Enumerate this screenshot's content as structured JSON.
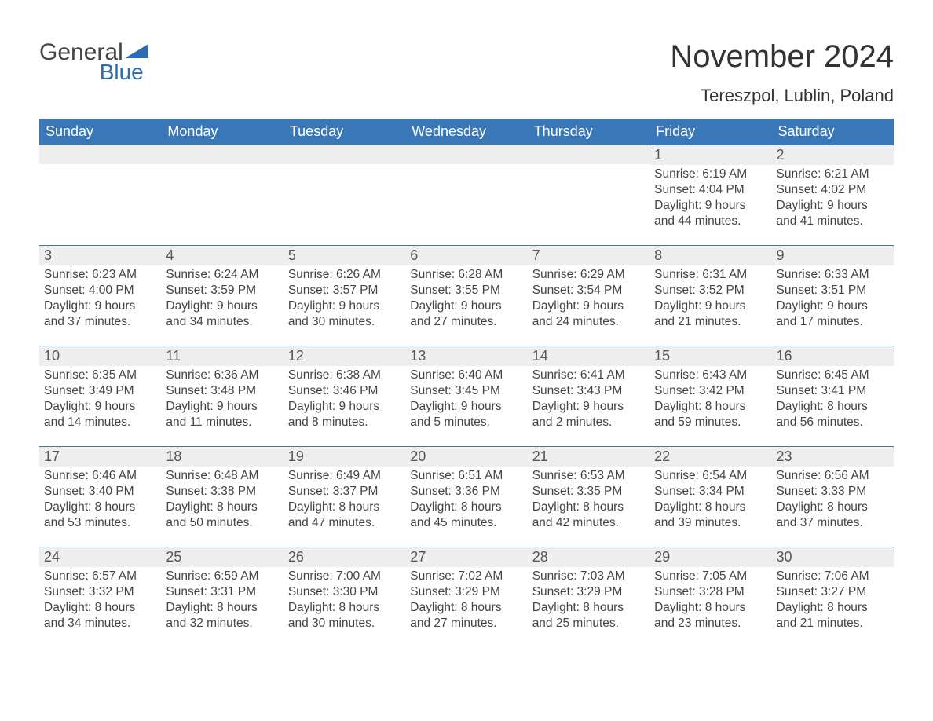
{
  "logo": {
    "text_general": "General",
    "text_blue": "Blue",
    "icon_color": "#2d6cb2",
    "general_color": "#444444",
    "blue_color": "#2d6cb2"
  },
  "title": "November 2024",
  "subtitle": "Tereszpol, Lublin, Poland",
  "colors": {
    "header_bg": "#3a77b8",
    "header_text": "#ffffff",
    "daynum_bg": "#eeeeee",
    "daynum_border": "#3a77b8",
    "body_text": "#444444",
    "bg": "#ffffff"
  },
  "day_headers": [
    "Sunday",
    "Monday",
    "Tuesday",
    "Wednesday",
    "Thursday",
    "Friday",
    "Saturday"
  ],
  "weeks": [
    [
      null,
      null,
      null,
      null,
      null,
      {
        "n": "1",
        "sunrise": "Sunrise: 6:19 AM",
        "sunset": "Sunset: 4:04 PM",
        "d1": "Daylight: 9 hours",
        "d2": "and 44 minutes."
      },
      {
        "n": "2",
        "sunrise": "Sunrise: 6:21 AM",
        "sunset": "Sunset: 4:02 PM",
        "d1": "Daylight: 9 hours",
        "d2": "and 41 minutes."
      }
    ],
    [
      {
        "n": "3",
        "sunrise": "Sunrise: 6:23 AM",
        "sunset": "Sunset: 4:00 PM",
        "d1": "Daylight: 9 hours",
        "d2": "and 37 minutes."
      },
      {
        "n": "4",
        "sunrise": "Sunrise: 6:24 AM",
        "sunset": "Sunset: 3:59 PM",
        "d1": "Daylight: 9 hours",
        "d2": "and 34 minutes."
      },
      {
        "n": "5",
        "sunrise": "Sunrise: 6:26 AM",
        "sunset": "Sunset: 3:57 PM",
        "d1": "Daylight: 9 hours",
        "d2": "and 30 minutes."
      },
      {
        "n": "6",
        "sunrise": "Sunrise: 6:28 AM",
        "sunset": "Sunset: 3:55 PM",
        "d1": "Daylight: 9 hours",
        "d2": "and 27 minutes."
      },
      {
        "n": "7",
        "sunrise": "Sunrise: 6:29 AM",
        "sunset": "Sunset: 3:54 PM",
        "d1": "Daylight: 9 hours",
        "d2": "and 24 minutes."
      },
      {
        "n": "8",
        "sunrise": "Sunrise: 6:31 AM",
        "sunset": "Sunset: 3:52 PM",
        "d1": "Daylight: 9 hours",
        "d2": "and 21 minutes."
      },
      {
        "n": "9",
        "sunrise": "Sunrise: 6:33 AM",
        "sunset": "Sunset: 3:51 PM",
        "d1": "Daylight: 9 hours",
        "d2": "and 17 minutes."
      }
    ],
    [
      {
        "n": "10",
        "sunrise": "Sunrise: 6:35 AM",
        "sunset": "Sunset: 3:49 PM",
        "d1": "Daylight: 9 hours",
        "d2": "and 14 minutes."
      },
      {
        "n": "11",
        "sunrise": "Sunrise: 6:36 AM",
        "sunset": "Sunset: 3:48 PM",
        "d1": "Daylight: 9 hours",
        "d2": "and 11 minutes."
      },
      {
        "n": "12",
        "sunrise": "Sunrise: 6:38 AM",
        "sunset": "Sunset: 3:46 PM",
        "d1": "Daylight: 9 hours",
        "d2": "and 8 minutes."
      },
      {
        "n": "13",
        "sunrise": "Sunrise: 6:40 AM",
        "sunset": "Sunset: 3:45 PM",
        "d1": "Daylight: 9 hours",
        "d2": "and 5 minutes."
      },
      {
        "n": "14",
        "sunrise": "Sunrise: 6:41 AM",
        "sunset": "Sunset: 3:43 PM",
        "d1": "Daylight: 9 hours",
        "d2": "and 2 minutes."
      },
      {
        "n": "15",
        "sunrise": "Sunrise: 6:43 AM",
        "sunset": "Sunset: 3:42 PM",
        "d1": "Daylight: 8 hours",
        "d2": "and 59 minutes."
      },
      {
        "n": "16",
        "sunrise": "Sunrise: 6:45 AM",
        "sunset": "Sunset: 3:41 PM",
        "d1": "Daylight: 8 hours",
        "d2": "and 56 minutes."
      }
    ],
    [
      {
        "n": "17",
        "sunrise": "Sunrise: 6:46 AM",
        "sunset": "Sunset: 3:40 PM",
        "d1": "Daylight: 8 hours",
        "d2": "and 53 minutes."
      },
      {
        "n": "18",
        "sunrise": "Sunrise: 6:48 AM",
        "sunset": "Sunset: 3:38 PM",
        "d1": "Daylight: 8 hours",
        "d2": "and 50 minutes."
      },
      {
        "n": "19",
        "sunrise": "Sunrise: 6:49 AM",
        "sunset": "Sunset: 3:37 PM",
        "d1": "Daylight: 8 hours",
        "d2": "and 47 minutes."
      },
      {
        "n": "20",
        "sunrise": "Sunrise: 6:51 AM",
        "sunset": "Sunset: 3:36 PM",
        "d1": "Daylight: 8 hours",
        "d2": "and 45 minutes."
      },
      {
        "n": "21",
        "sunrise": "Sunrise: 6:53 AM",
        "sunset": "Sunset: 3:35 PM",
        "d1": "Daylight: 8 hours",
        "d2": "and 42 minutes."
      },
      {
        "n": "22",
        "sunrise": "Sunrise: 6:54 AM",
        "sunset": "Sunset: 3:34 PM",
        "d1": "Daylight: 8 hours",
        "d2": "and 39 minutes."
      },
      {
        "n": "23",
        "sunrise": "Sunrise: 6:56 AM",
        "sunset": "Sunset: 3:33 PM",
        "d1": "Daylight: 8 hours",
        "d2": "and 37 minutes."
      }
    ],
    [
      {
        "n": "24",
        "sunrise": "Sunrise: 6:57 AM",
        "sunset": "Sunset: 3:32 PM",
        "d1": "Daylight: 8 hours",
        "d2": "and 34 minutes."
      },
      {
        "n": "25",
        "sunrise": "Sunrise: 6:59 AM",
        "sunset": "Sunset: 3:31 PM",
        "d1": "Daylight: 8 hours",
        "d2": "and 32 minutes."
      },
      {
        "n": "26",
        "sunrise": "Sunrise: 7:00 AM",
        "sunset": "Sunset: 3:30 PM",
        "d1": "Daylight: 8 hours",
        "d2": "and 30 minutes."
      },
      {
        "n": "27",
        "sunrise": "Sunrise: 7:02 AM",
        "sunset": "Sunset: 3:29 PM",
        "d1": "Daylight: 8 hours",
        "d2": "and 27 minutes."
      },
      {
        "n": "28",
        "sunrise": "Sunrise: 7:03 AM",
        "sunset": "Sunset: 3:29 PM",
        "d1": "Daylight: 8 hours",
        "d2": "and 25 minutes."
      },
      {
        "n": "29",
        "sunrise": "Sunrise: 7:05 AM",
        "sunset": "Sunset: 3:28 PM",
        "d1": "Daylight: 8 hours",
        "d2": "and 23 minutes."
      },
      {
        "n": "30",
        "sunrise": "Sunrise: 7:06 AM",
        "sunset": "Sunset: 3:27 PM",
        "d1": "Daylight: 8 hours",
        "d2": "and 21 minutes."
      }
    ]
  ]
}
